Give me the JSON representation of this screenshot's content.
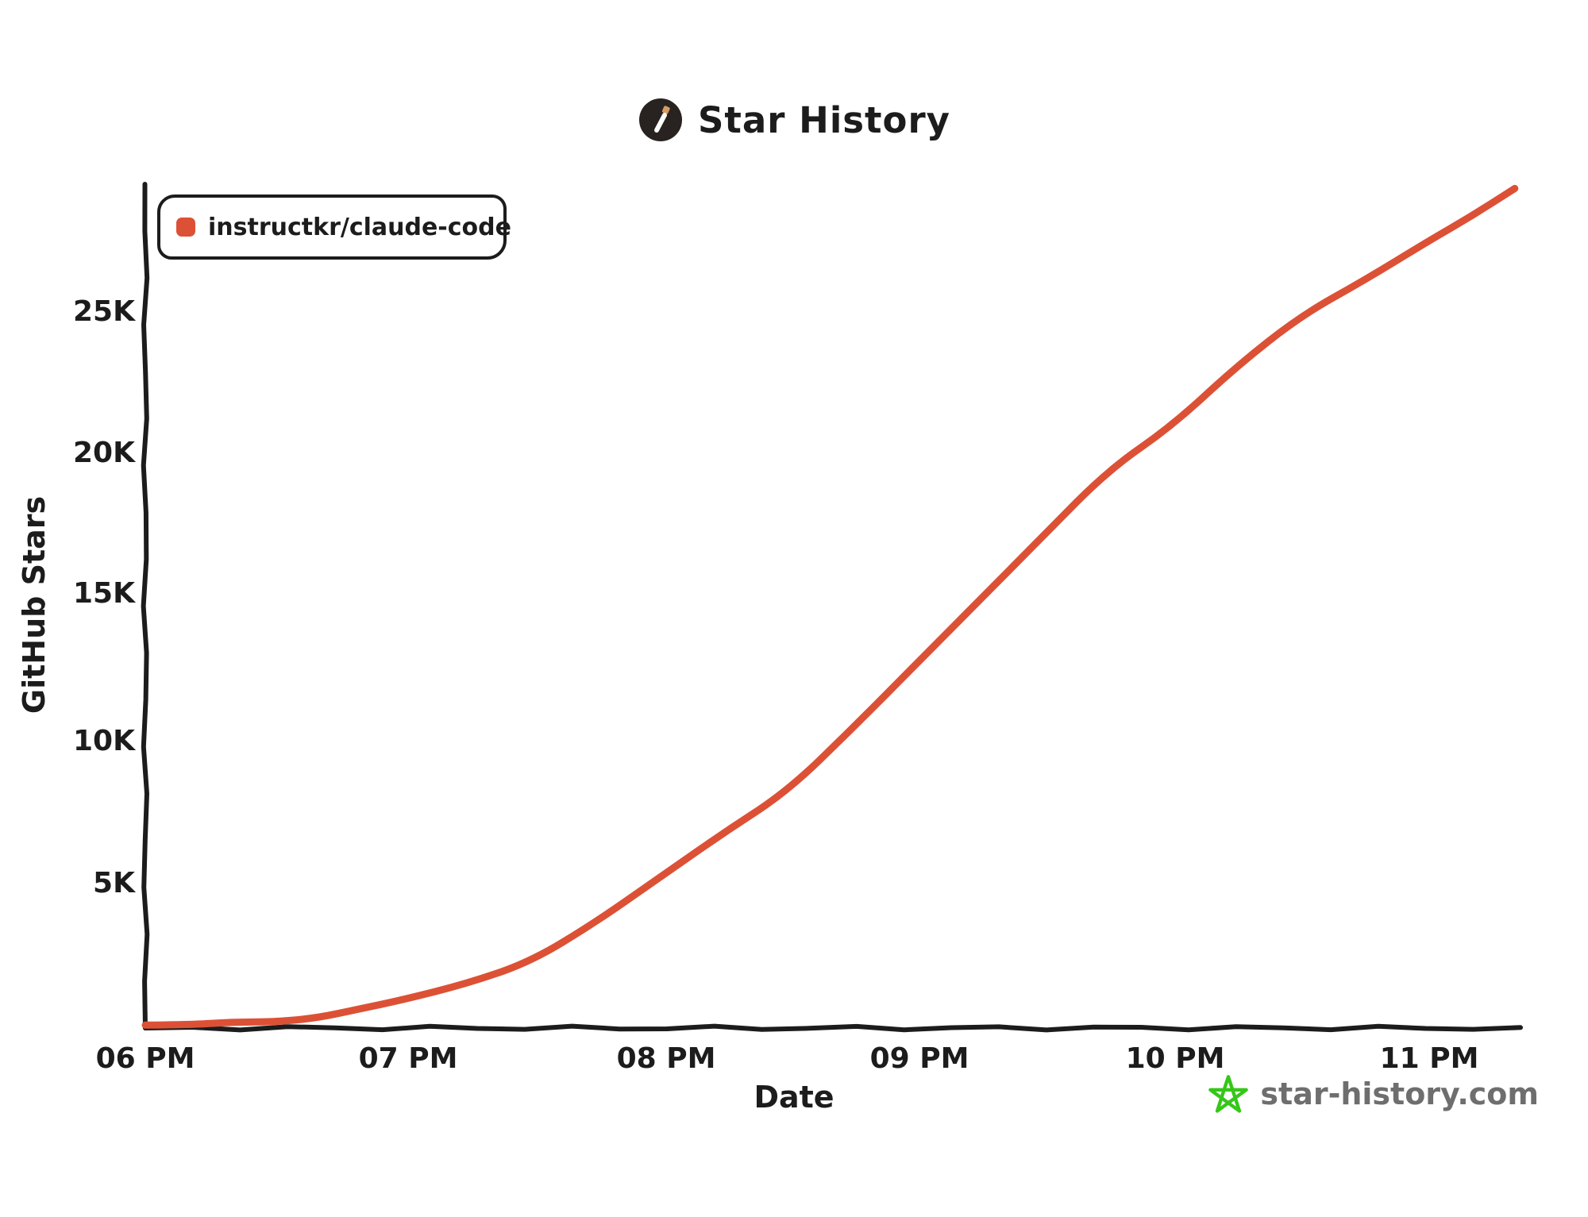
{
  "page": {
    "background": "#ffffff"
  },
  "header": {
    "title": "Star History",
    "logo_icon": "pencil-wand-icon",
    "logo_circle_color": "#282320",
    "logo_tip_color": "#d79b63"
  },
  "legend": {
    "items": [
      {
        "label": "instructkr/claude-code",
        "marker_color": "#dc5135"
      }
    ]
  },
  "watermark": {
    "icon": "star-icon",
    "icon_color": "#35c718",
    "text": "star-history.com",
    "text_color": "#6e6e6e"
  },
  "colors": {
    "series_red": "#dc5135",
    "axis_black": "#1c1c1c",
    "background": "#ffffff"
  },
  "chart_data": {
    "type": "line",
    "title": "Star History",
    "xlabel": "Date",
    "ylabel": "GitHub Stars",
    "grid": false,
    "legend_position": "top-left",
    "x_ticks": [
      "06 PM",
      "07 PM",
      "08 PM",
      "09 PM",
      "10 PM",
      "11 PM"
    ],
    "y_ticks": [
      "5K",
      "10K",
      "15K",
      "20K",
      "25K"
    ],
    "y_tick_values": [
      5000,
      10000,
      15000,
      20000,
      25000
    ],
    "x_range": [
      "18:00",
      "23:20"
    ],
    "ylim": [
      0,
      29500
    ],
    "series": [
      {
        "name": "instructkr/claude-code",
        "color": "#dc5135",
        "points": [
          {
            "time": "18:00",
            "stars": 20
          },
          {
            "time": "18:10",
            "stars": 60
          },
          {
            "time": "18:20",
            "stars": 90
          },
          {
            "time": "18:30",
            "stars": 130
          },
          {
            "time": "18:40",
            "stars": 300
          },
          {
            "time": "18:50",
            "stars": 550
          },
          {
            "time": "19:00",
            "stars": 900
          },
          {
            "time": "19:15",
            "stars": 1500
          },
          {
            "time": "19:30",
            "stars": 2200
          },
          {
            "time": "19:45",
            "stars": 3600
          },
          {
            "time": "20:00",
            "stars": 5200
          },
          {
            "time": "20:15",
            "stars": 6700
          },
          {
            "time": "20:30",
            "stars": 8200
          },
          {
            "time": "20:45",
            "stars": 10400
          },
          {
            "time": "21:00",
            "stars": 12600
          },
          {
            "time": "21:15",
            "stars": 14900
          },
          {
            "time": "21:30",
            "stars": 17200
          },
          {
            "time": "21:45",
            "stars": 19400
          },
          {
            "time": "22:00",
            "stars": 21000
          },
          {
            "time": "22:15",
            "stars": 23100
          },
          {
            "time": "22:30",
            "stars": 24800
          },
          {
            "time": "22:45",
            "stars": 26100
          },
          {
            "time": "23:00",
            "stars": 27500
          },
          {
            "time": "23:10",
            "stars": 28300
          },
          {
            "time": "23:20",
            "stars": 29300
          }
        ]
      }
    ]
  }
}
